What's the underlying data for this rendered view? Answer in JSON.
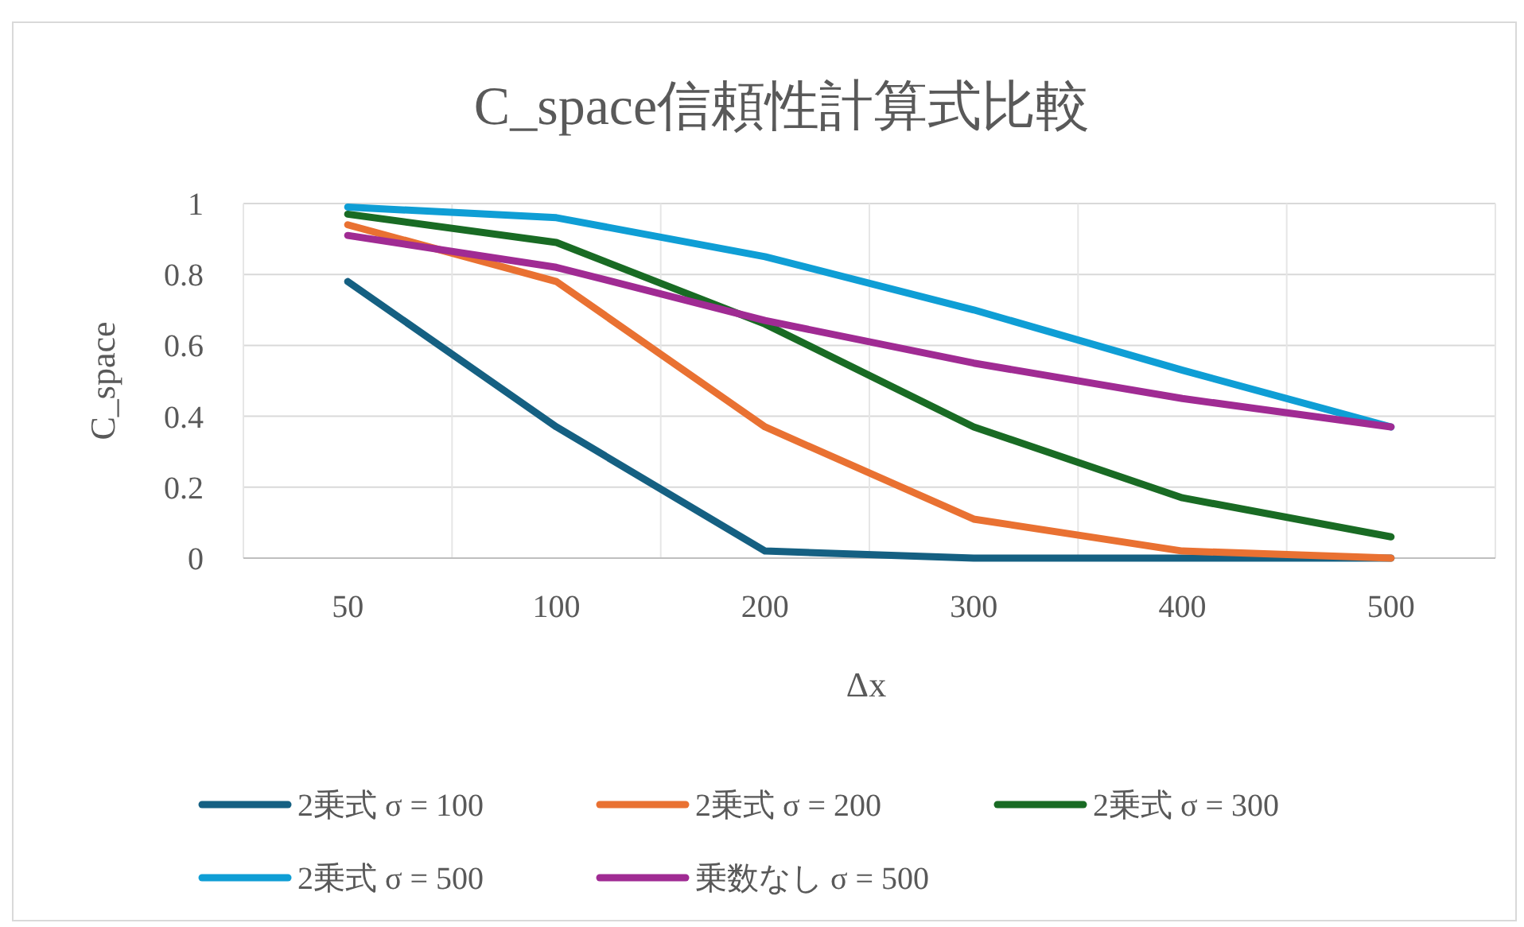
{
  "chart_data": {
    "type": "line",
    "title": "C_space信頼性計算式比較",
    "xlabel": "Δx",
    "ylabel": "C_space",
    "categories": [
      "50",
      "100",
      "200",
      "300",
      "400",
      "500"
    ],
    "ylim": [
      0,
      1
    ],
    "yticks": [
      0,
      0.2,
      0.4,
      0.6,
      0.8,
      1
    ],
    "grid": true,
    "legend": "bottom",
    "marker": "none",
    "line_style": "solid",
    "series": [
      {
        "name": "2乗式 σ = 100",
        "color": "#156082",
        "values": [
          0.78,
          0.37,
          0.02,
          0,
          0,
          0
        ]
      },
      {
        "name": "2乗式 σ = 200",
        "color": "#e97132",
        "values": [
          0.94,
          0.78,
          0.37,
          0.11,
          0.02,
          0
        ]
      },
      {
        "name": "2乗式 σ = 300",
        "color": "#196b24",
        "values": [
          0.97,
          0.89,
          0.66,
          0.37,
          0.17,
          0.06
        ]
      },
      {
        "name": "2乗式 σ = 500",
        "color": "#0f9ed5",
        "values": [
          0.99,
          0.96,
          0.85,
          0.7,
          0.53,
          0.37
        ]
      },
      {
        "name": "乗数なし σ = 500",
        "color": "#a02b93",
        "values": [
          0.91,
          0.82,
          0.67,
          0.55,
          0.45,
          0.37
        ]
      }
    ]
  }
}
